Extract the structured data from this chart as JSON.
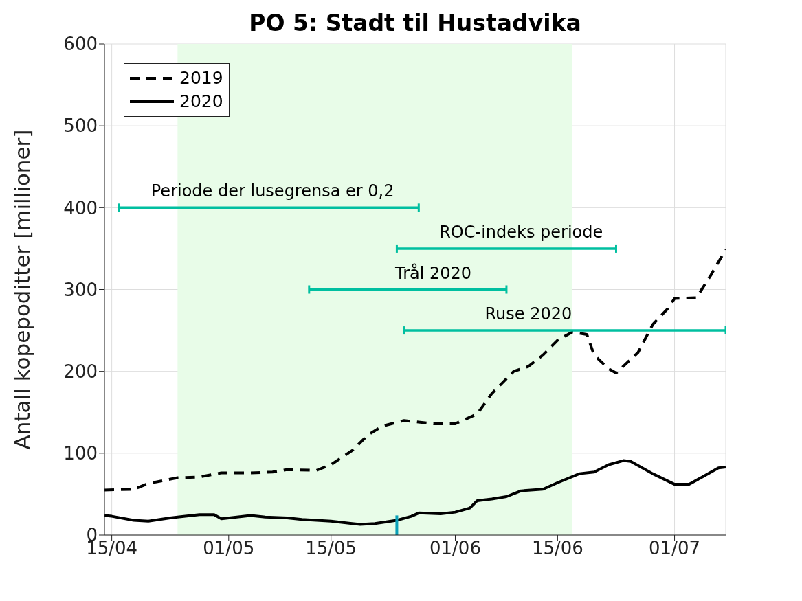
{
  "chart_data": {
    "type": "line",
    "title": "PO 5: Stadt til Hustadvika",
    "ylabel": "Antall kopepoditter [millioner]",
    "xlim": [
      "--04-14",
      "--07-08"
    ],
    "xticks": [
      {
        "value": "--04-15",
        "label": "15/04"
      },
      {
        "value": "--05-01",
        "label": "01/05"
      },
      {
        "value": "--05-15",
        "label": "15/05"
      },
      {
        "value": "--06-01",
        "label": "01/06"
      },
      {
        "value": "--06-15",
        "label": "15/06"
      },
      {
        "value": "--07-01",
        "label": "01/07"
      }
    ],
    "ylim": [
      0,
      600
    ],
    "yticks": [
      0,
      100,
      200,
      300,
      400,
      500,
      600
    ],
    "grid": true,
    "legend": "top left",
    "bands": [
      {
        "axis": "x",
        "from": "--04-24",
        "to": "--06-17",
        "color": "#e8fce8"
      }
    ],
    "series": [
      {
        "name": "2019",
        "color": "#000000",
        "line_style": "dashed",
        "x": [
          "--04-14",
          "--04-18",
          "--04-20",
          "--04-24",
          "--04-27",
          "--04-30",
          "--05-04",
          "--05-07",
          "--05-09",
          "--05-13",
          "--05-15",
          "--05-18",
          "--05-20",
          "--05-22",
          "--05-25",
          "--05-26",
          "--05-29",
          "--06-01",
          "--06-04",
          "--06-06",
          "--06-09",
          "--06-11",
          "--06-13",
          "--06-15",
          "--06-17",
          "--06-19",
          "--06-20",
          "--06-22",
          "--06-23",
          "--06-26",
          "--06-28",
          "--06-30",
          "--07-01",
          "--07-04",
          "--07-06",
          "--07-08"
        ],
        "values": [
          55,
          56,
          63,
          70,
          71,
          76,
          76,
          77,
          80,
          79,
          86,
          104,
          122,
          133,
          140,
          139,
          136,
          136,
          148,
          173,
          200,
          206,
          220,
          238,
          248,
          245,
          220,
          203,
          198,
          223,
          257,
          276,
          289,
          290,
          318,
          349
        ]
      },
      {
        "name": "2020",
        "color": "#000000",
        "line_style": "solid",
        "x": [
          "--04-14",
          "--04-15",
          "--04-18",
          "--04-20",
          "--04-23",
          "--04-24",
          "--04-27",
          "--04-29",
          "--04-30",
          "--05-04",
          "--05-06",
          "--05-09",
          "--05-11",
          "--05-15",
          "--05-19",
          "--05-21",
          "--05-24",
          "--05-26",
          "--05-27",
          "--05-30",
          "--06-01",
          "--06-03",
          "--06-04",
          "--06-06",
          "--06-08",
          "--06-10",
          "--06-13",
          "--06-15",
          "--06-18",
          "--06-20",
          "--06-22",
          "--06-24",
          "--06-25",
          "--06-28",
          "--07-01",
          "--07-03",
          "--07-05",
          "--07-07",
          "--07-08"
        ],
        "values": [
          24,
          23,
          18,
          17,
          21,
          22,
          25,
          25,
          20,
          24,
          22,
          21,
          19,
          17,
          13,
          14,
          18,
          23,
          27,
          26,
          28,
          33,
          42,
          44,
          47,
          54,
          56,
          64,
          75,
          77,
          86,
          91,
          90,
          75,
          62,
          62,
          72,
          82,
          83
        ]
      },
      {
        "color": "#00bfa0",
        "line_style": "solid",
        "x": [
          "--04-16",
          "--05-27"
        ],
        "values": [
          400,
          400
        ]
      },
      {
        "color": "#00bfa0",
        "line_style": "solid",
        "x": [
          "--05-24",
          "--06-23"
        ],
        "values": [
          350,
          350
        ]
      },
      {
        "color": "#00bfa0",
        "line_style": "solid",
        "x": [
          "--05-12",
          "--06-08"
        ],
        "values": [
          300,
          300
        ]
      },
      {
        "color": "#00bfa0",
        "line_style": "solid",
        "x": [
          "--05-25",
          "--07-08"
        ],
        "values": [
          250,
          250
        ]
      },
      {
        "color": "#0aa0b8",
        "line_style": "solid",
        "x": [
          "--05-24",
          "--05-24"
        ],
        "values": [
          0,
          24
        ]
      }
    ],
    "annotations": [
      {
        "text": "Periode der lusegrensa er 0,2",
        "x": "--05-07",
        "y": 400
      },
      {
        "text": "ROC-indeks periode",
        "x": "--06-10",
        "y": 350
      },
      {
        "text": "Trål 2020",
        "x": "--05-29",
        "y": 300
      },
      {
        "text": "Ruse 2020",
        "x": "--06-11",
        "y": 250
      }
    ]
  }
}
